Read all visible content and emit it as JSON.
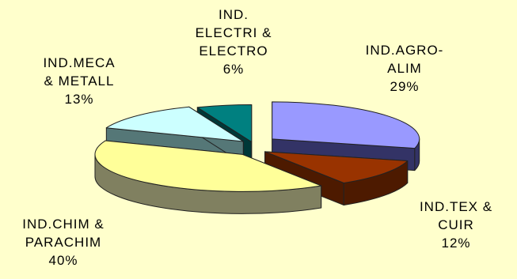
{
  "chart_data": {
    "type": "pie",
    "style": "3d-exploded",
    "title": "",
    "slices": [
      {
        "name_lines": [
          "IND.AGRO-",
          "ALIM"
        ],
        "value": 29,
        "value_label": "29%",
        "color": "#9999ff",
        "side_color": "#333366"
      },
      {
        "name_lines": [
          "IND.TEX &",
          "CUIR"
        ],
        "value": 12,
        "value_label": "12%",
        "color": "#993300",
        "side_color": "#4d1a00"
      },
      {
        "name_lines": [
          "IND.CHIM &",
          "PARACHIM"
        ],
        "value": 40,
        "value_label": "40%",
        "color": "#ffff99",
        "side_color": "#808060"
      },
      {
        "name_lines": [
          "IND.MECA",
          "& METALL"
        ],
        "value": 13,
        "value_label": "13%",
        "color": "#ccffff",
        "side_color": "#557777"
      },
      {
        "name_lines": [
          "IND.",
          "ELECTRI &",
          "ELECTRO"
        ],
        "value": 6,
        "value_label": "6%",
        "color": "#008080",
        "side_color": "#003838"
      }
    ],
    "legend": "none"
  }
}
